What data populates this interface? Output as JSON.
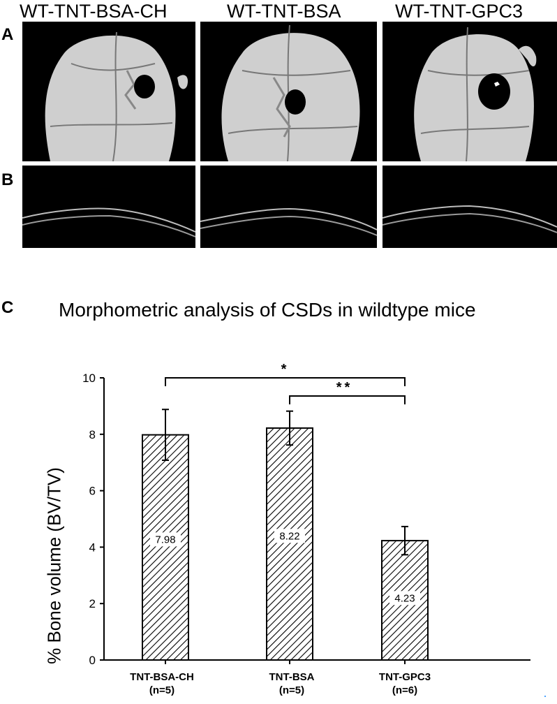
{
  "panels": {
    "letters": {
      "a": "A",
      "b": "B",
      "c": "C"
    },
    "column_titles": [
      "WT-TNT-BSA-CH",
      "WT-TNT-BSA",
      "WT-TNT-GPC3"
    ]
  },
  "chart_data": {
    "type": "bar",
    "title": "Morphometric analysis of CSDs in wildtype mice",
    "ylabel": "% Bone volume (BV/TV)",
    "xlabel": "",
    "categories": [
      "TNT-BSA-CH",
      "TNT-BSA",
      "TNT-GPC3"
    ],
    "category_sublabels": [
      "(n=5)",
      "(n=5)",
      "(n=6)"
    ],
    "values": [
      7.98,
      8.22,
      4.23
    ],
    "error_bars": [
      0.9,
      0.6,
      0.5
    ],
    "value_labels": [
      "7.98",
      "8.22",
      "4.23"
    ],
    "ylim": [
      0,
      10
    ],
    "yticks": [
      0,
      2,
      4,
      6,
      8,
      10
    ],
    "bar_fill": "diagonal-hatch",
    "significance": [
      {
        "from": 0,
        "to": 2,
        "label": "*"
      },
      {
        "from": 1,
        "to": 2,
        "label": "**"
      }
    ],
    "grid": false,
    "legend": "none"
  },
  "colors": {
    "background": "#ffffff",
    "ink": "#000000",
    "panel_bg": "#000000",
    "bone": "#cfcfcf"
  }
}
